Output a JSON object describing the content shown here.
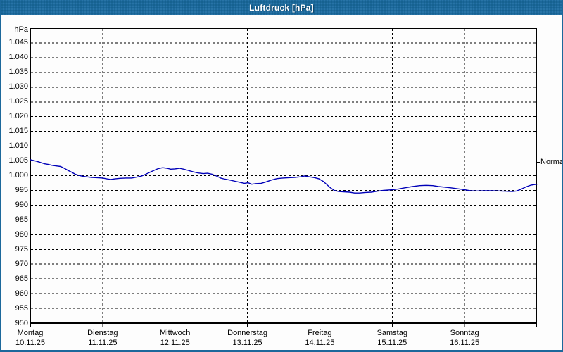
{
  "window": {
    "title": "Luftdruck [hPa]"
  },
  "colors": {
    "titlebar_blue": "#1c689b",
    "border_blue": "#1c689b",
    "background": "#fdfdfd",
    "grid_black": "#000000",
    "curve_blue": "#0000b8",
    "title_text": "#ffffff",
    "label_text": "#000000"
  },
  "chart_data": {
    "type": "line",
    "title": "Luftdruck [hPa]",
    "unit_label": "hPa",
    "grid": "dashed",
    "y_axis": {
      "min": 950,
      "max": 1050,
      "step": 5,
      "tick_values": [
        1045,
        1040,
        1035,
        1030,
        1025,
        1020,
        1015,
        1010,
        1005,
        1000,
        995,
        990,
        985,
        980,
        975,
        970,
        965,
        960,
        955,
        950
      ],
      "tick_labels": [
        "1.045",
        "1.040",
        "1.035",
        "1.030",
        "1.025",
        "1.020",
        "1.015",
        "1.010",
        "1.005",
        "1.000",
        "995",
        "990",
        "985",
        "980",
        "975",
        "970",
        "965",
        "960",
        "955",
        "950"
      ]
    },
    "x_axis": {
      "span_days": 7,
      "days": [
        {
          "name": "Montag",
          "date": "10.11.25"
        },
        {
          "name": "Dienstag",
          "date": "11.11.25"
        },
        {
          "name": "Mittwoch",
          "date": "12.11.25"
        },
        {
          "name": "Donnerstag",
          "date": "13.11.25"
        },
        {
          "name": "Freitag",
          "date": "14.11.25"
        },
        {
          "name": "Samstag",
          "date": "15.11.25"
        },
        {
          "name": "Sonntag",
          "date": "16.11.25"
        }
      ]
    },
    "normal_marker": {
      "label": "Normal",
      "value_hpa": 1004.5,
      "position": "right-axis"
    },
    "series": [
      {
        "name": "Luftdruck",
        "color": "#0000b8",
        "points_day_hpa": [
          [
            0.0,
            1005.4
          ],
          [
            0.05,
            1005.1
          ],
          [
            0.1,
            1004.8
          ],
          [
            0.15,
            1004.4
          ],
          [
            0.2,
            1004.0
          ],
          [
            0.25,
            1003.8
          ],
          [
            0.3,
            1003.5
          ],
          [
            0.36,
            1003.3
          ],
          [
            0.42,
            1003.1
          ],
          [
            0.47,
            1002.5
          ],
          [
            0.52,
            1001.8
          ],
          [
            0.57,
            1001.2
          ],
          [
            0.62,
            1000.5
          ],
          [
            0.67,
            1000.1
          ],
          [
            0.72,
            999.8
          ],
          [
            0.78,
            999.6
          ],
          [
            0.85,
            999.4
          ],
          [
            0.92,
            999.3
          ],
          [
            1.0,
            999.2
          ],
          [
            1.06,
            998.9
          ],
          [
            1.11,
            998.7
          ],
          [
            1.17,
            998.9
          ],
          [
            1.24,
            999.1
          ],
          [
            1.32,
            999.2
          ],
          [
            1.4,
            999.2
          ],
          [
            1.47,
            999.5
          ],
          [
            1.53,
            999.8
          ],
          [
            1.59,
            1000.4
          ],
          [
            1.65,
            1001.1
          ],
          [
            1.71,
            1001.8
          ],
          [
            1.77,
            1002.4
          ],
          [
            1.83,
            1002.7
          ],
          [
            1.89,
            1002.5
          ],
          [
            1.94,
            1002.2
          ],
          [
            2.0,
            1002.3
          ],
          [
            2.06,
            1002.5
          ],
          [
            2.12,
            1002.2
          ],
          [
            2.18,
            1001.8
          ],
          [
            2.25,
            1001.3
          ],
          [
            2.32,
            1000.9
          ],
          [
            2.39,
            1000.7
          ],
          [
            2.45,
            1000.8
          ],
          [
            2.51,
            1000.5
          ],
          [
            2.57,
            999.9
          ],
          [
            2.63,
            999.2
          ],
          [
            2.69,
            998.8
          ],
          [
            2.76,
            998.5
          ],
          [
            2.83,
            998.1
          ],
          [
            2.9,
            997.7
          ],
          [
            2.96,
            997.4
          ],
          [
            3.01,
            997.6
          ],
          [
            3.06,
            997.1
          ],
          [
            3.12,
            997.3
          ],
          [
            3.19,
            997.4
          ],
          [
            3.26,
            997.9
          ],
          [
            3.33,
            998.5
          ],
          [
            3.41,
            999.0
          ],
          [
            3.49,
            999.2
          ],
          [
            3.57,
            999.3
          ],
          [
            3.65,
            999.4
          ],
          [
            3.73,
            999.6
          ],
          [
            3.79,
            999.9
          ],
          [
            3.86,
            999.6
          ],
          [
            3.93,
            999.3
          ],
          [
            3.99,
            998.9
          ],
          [
            4.05,
            998.0
          ],
          [
            4.1,
            996.9
          ],
          [
            4.15,
            995.8
          ],
          [
            4.2,
            995.0
          ],
          [
            4.26,
            994.6
          ],
          [
            4.33,
            994.5
          ],
          [
            4.41,
            994.4
          ],
          [
            4.48,
            994.1
          ],
          [
            4.55,
            994.1
          ],
          [
            4.63,
            994.3
          ],
          [
            4.71,
            994.4
          ],
          [
            4.79,
            994.7
          ],
          [
            4.88,
            995.0
          ],
          [
            5.0,
            995.2
          ],
          [
            5.09,
            995.5
          ],
          [
            5.18,
            995.9
          ],
          [
            5.28,
            996.3
          ],
          [
            5.38,
            996.6
          ],
          [
            5.47,
            996.7
          ],
          [
            5.56,
            996.6
          ],
          [
            5.64,
            996.3
          ],
          [
            5.72,
            996.1
          ],
          [
            5.8,
            995.9
          ],
          [
            5.89,
            995.6
          ],
          [
            6.0,
            995.2
          ],
          [
            6.08,
            994.9
          ],
          [
            6.17,
            994.8
          ],
          [
            6.28,
            994.9
          ],
          [
            6.38,
            994.9
          ],
          [
            6.48,
            994.8
          ],
          [
            6.58,
            994.7
          ],
          [
            6.66,
            994.6
          ],
          [
            6.72,
            994.8
          ],
          [
            6.78,
            995.4
          ],
          [
            6.85,
            996.2
          ],
          [
            6.92,
            996.8
          ],
          [
            7.0,
            997.1
          ]
        ]
      }
    ]
  }
}
